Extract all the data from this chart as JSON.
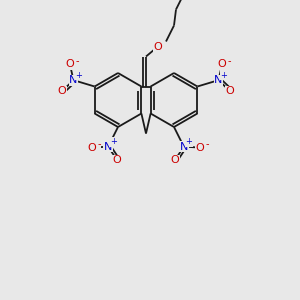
{
  "bg_color": "#e8e8e8",
  "bond_color": "#1a1a1a",
  "bond_width": 1.3,
  "N_color": "#0000cc",
  "O_color": "#cc0000",
  "figsize": [
    3.0,
    3.0
  ],
  "dpi": 100,
  "xlim": [
    0,
    300
  ],
  "ylim": [
    0,
    300
  ]
}
